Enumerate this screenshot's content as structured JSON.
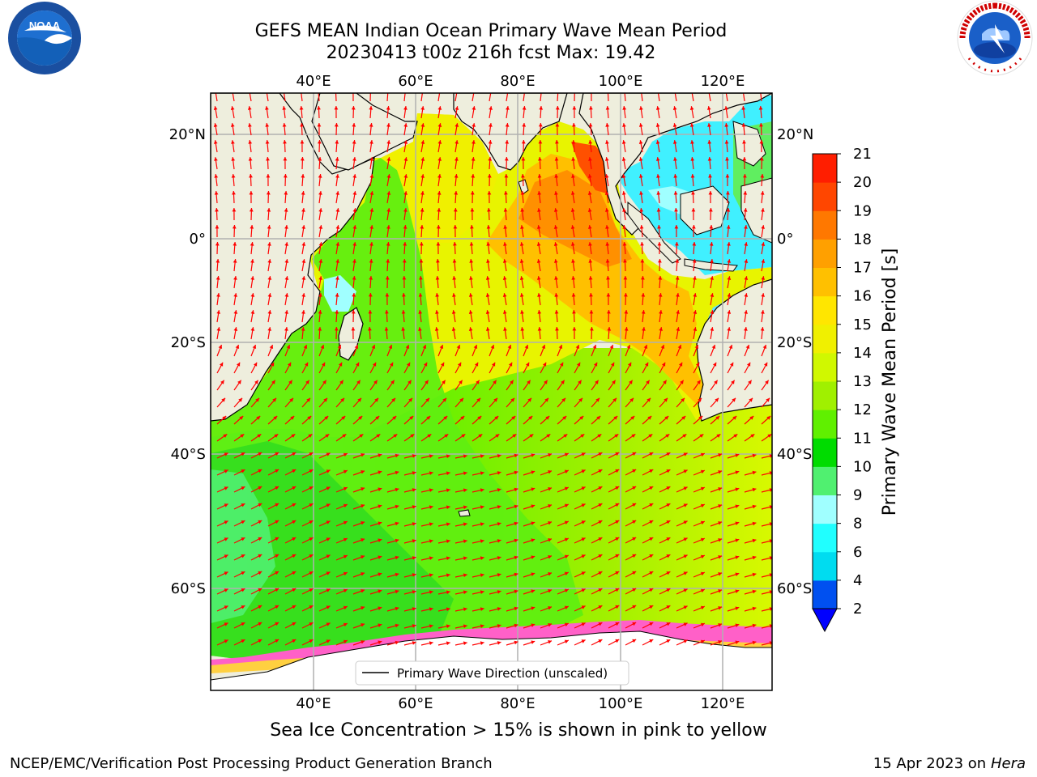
{
  "title": "GEFS MEAN Indian Ocean Primary Wave Mean Period",
  "subtitle": "20230413 t00z 216h fcst   Max: 19.42",
  "caption": "Sea Ice Concentration > 15% is shown in pink to yellow",
  "footer_left": "NCEP/EMC/Verification Post Processing Product Generation Branch",
  "footer_right_date": "15 Apr 2023 on ",
  "footer_right_host": "Hera",
  "legend_label": "Primary Wave Direction (unscaled)",
  "colorbar_label": "Primary Wave Mean Period [s]",
  "colorbar_ticks": [
    "2",
    "4",
    "6",
    "8",
    "9",
    "10",
    "11",
    "12",
    "13",
    "14",
    "15",
    "16",
    "17",
    "18",
    "19",
    "20",
    "21"
  ],
  "colorbar_colors": [
    "#0050f0",
    "#00dcf0",
    "#20ffff",
    "#a0ffff",
    "#50f070",
    "#00dc00",
    "#60f000",
    "#a0f000",
    "#d0f800",
    "#f0f000",
    "#ffe600",
    "#ffc000",
    "#ffa000",
    "#ff7800",
    "#ff4600",
    "#ff1e00"
  ],
  "colorbar_under_color": "#0000ff",
  "lon_labels_top": [
    "40°E",
    "60°E",
    "80°E",
    "100°E",
    "120°E"
  ],
  "lon_labels_bottom": [
    "40°E",
    "60°E",
    "80°E",
    "100°E",
    "120°E"
  ],
  "lat_labels_left": [
    "20°N",
    "0°",
    "20°S",
    "40°S",
    "60°S"
  ],
  "lat_labels_right": [
    "20°N",
    "0°",
    "20°S",
    "40°S",
    "60°S"
  ],
  "logos": {
    "left": "NOAA",
    "right": "NATIONAL WEATHER SERVICE"
  },
  "arrow_color": "#ff0000",
  "land_color": "#eeeedd"
}
